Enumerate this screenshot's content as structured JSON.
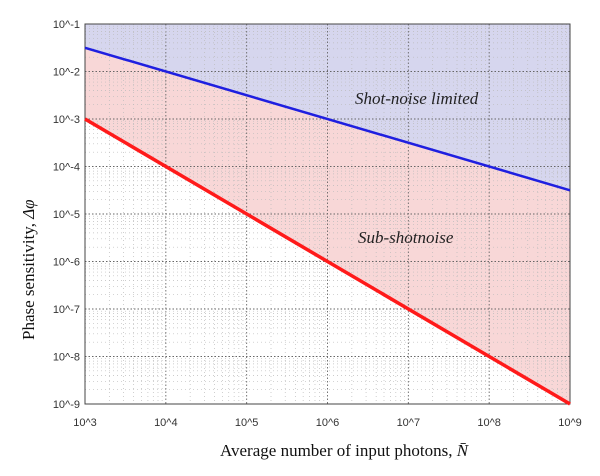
{
  "chart_data": {
    "type": "line",
    "xlabel": "Average number of input photons,",
    "xlabel_symbol": "N̄",
    "ylabel": "Phase sensitivity,",
    "ylabel_symbol": "Δφ",
    "xscale": "log",
    "yscale": "log",
    "xlim": [
      1000,
      1000000000
    ],
    "ylim": [
      1e-09,
      0.1
    ],
    "x_ticks": [
      "10^3",
      "10^4",
      "10^5",
      "10^6",
      "10^7",
      "10^8",
      "10^9"
    ],
    "y_ticks": [
      "10^-9",
      "10^-8",
      "10^-7",
      "10^-6",
      "10^-5",
      "10^-4",
      "10^-3",
      "10^-2",
      "10^-1"
    ],
    "grid": true,
    "series": [
      {
        "x": [
          1000,
          1000000000
        ],
        "y": [
          0.0316,
          3.16e-05
        ],
        "color": "#1f1fe0"
      },
      {
        "x": [
          1000,
          1000000000
        ],
        "y": [
          0.001,
          1e-09
        ],
        "color": "#ff1a1a"
      }
    ],
    "regions": [
      {
        "label": "Shot-noise limited",
        "color": "#d6d6ee"
      },
      {
        "label": "Sub-shotnoise",
        "color": "#f8d7d7"
      }
    ],
    "annotations": {
      "shot_noise": "Shot-noise limited",
      "sub_shot": "Sub-shotnoise"
    }
  }
}
